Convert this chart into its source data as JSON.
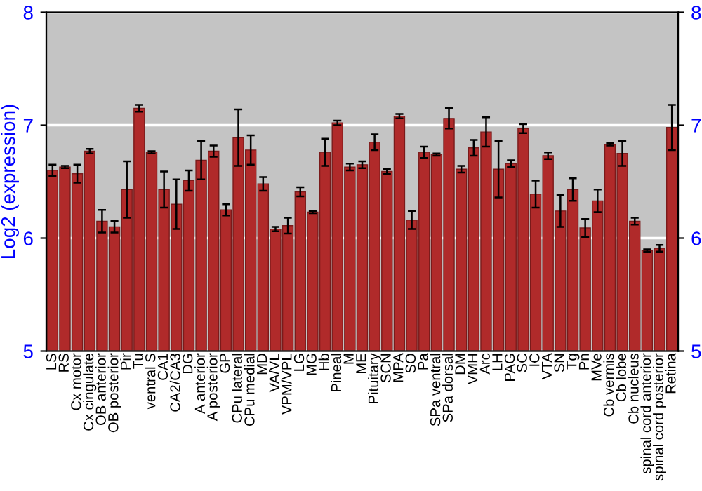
{
  "chart_data": {
    "type": "bar",
    "ylabel": "Log2 (expression)",
    "categories": [
      "LS",
      "RS",
      "Cx motor",
      "Cx cingulate",
      "OB anterior",
      "OB posterior",
      "Pir",
      "Tu",
      "ventral S",
      "CA1",
      "CA2/CA3",
      "DG",
      "A anterior",
      "A posterior",
      "GP",
      "CPu lateral",
      "CPu medial",
      "MD",
      "VA/VL",
      "VPM/VPL",
      "LG",
      "MG",
      "Hb",
      "Pineal",
      "M",
      "ME",
      "Pituitary",
      "SCN",
      "MPA",
      "SO",
      "Pa",
      "SPa ventral",
      "SPa dorsal",
      "DM",
      "VMH",
      "Arc",
      "LH",
      "PAG",
      "SC",
      "IC",
      "VTA",
      "SN",
      "Tg",
      "Pn",
      "MVe",
      "Cb vermis",
      "Cb lobe",
      "Cb nucleus",
      "spinal cord anterior",
      "spinal cord posterior",
      "Retina"
    ],
    "values": [
      6.6,
      6.63,
      6.57,
      6.77,
      6.15,
      6.1,
      6.43,
      7.15,
      6.76,
      6.43,
      6.3,
      6.51,
      6.69,
      6.77,
      6.25,
      6.89,
      6.78,
      6.48,
      6.08,
      6.11,
      6.41,
      6.23,
      6.76,
      7.02,
      6.63,
      6.65,
      6.85,
      6.59,
      7.08,
      6.16,
      6.76,
      6.74,
      7.06,
      6.61,
      6.8,
      6.94,
      6.61,
      6.66,
      6.97,
      6.39,
      6.73,
      6.24,
      6.43,
      6.09,
      6.33,
      6.83,
      6.75,
      6.15,
      5.89,
      5.91,
      6.98
    ],
    "errors": [
      0.05,
      0.01,
      0.08,
      0.02,
      0.1,
      0.05,
      0.25,
      0.03,
      0.01,
      0.16,
      0.22,
      0.09,
      0.17,
      0.05,
      0.05,
      0.25,
      0.13,
      0.06,
      0.02,
      0.07,
      0.04,
      0.01,
      0.12,
      0.02,
      0.03,
      0.03,
      0.07,
      0.02,
      0.02,
      0.08,
      0.05,
      0.01,
      0.09,
      0.03,
      0.07,
      0.13,
      0.25,
      0.03,
      0.04,
      0.12,
      0.03,
      0.14,
      0.1,
      0.08,
      0.1,
      0.01,
      0.11,
      0.03,
      0.01,
      0.03,
      0.2
    ],
    "color": "#b02a2a",
    "ylim": [
      5,
      8
    ],
    "yticks": [
      5,
      6,
      7,
      8
    ],
    "y2lim": [
      5,
      8
    ],
    "y2ticks": [
      5,
      6,
      7,
      8
    ],
    "grid": "y"
  }
}
